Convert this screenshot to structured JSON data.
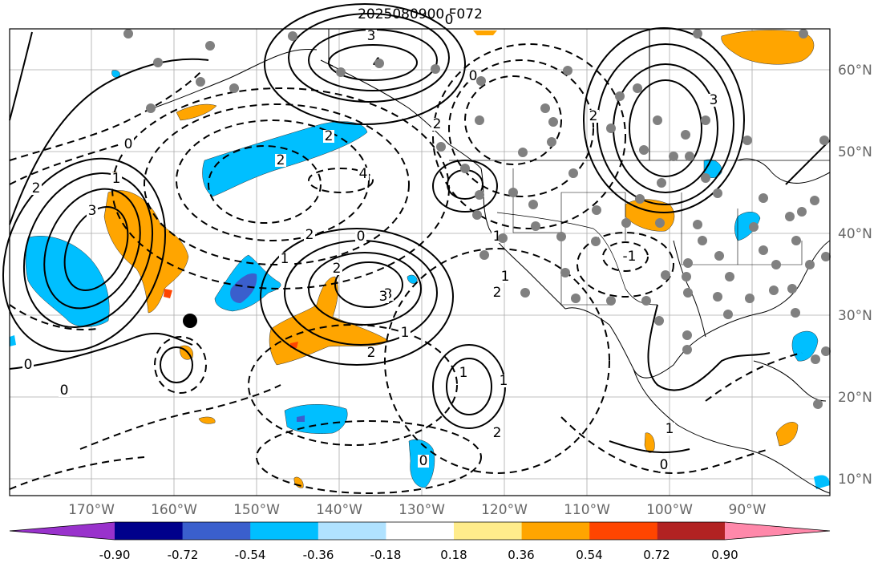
{
  "title": "2025080900 F072",
  "map": {
    "lon_ticks": [
      "170°W",
      "160°W",
      "150°W",
      "140°W",
      "130°W",
      "120°W",
      "110°W",
      "100°W",
      "90°W"
    ],
    "lat_ticks": [
      "60°N",
      "50°N",
      "40°N",
      "30°N",
      "20°N",
      "10°N"
    ],
    "contour_labels": [
      "3",
      "4",
      "3",
      "3",
      "2",
      "2",
      "3",
      "4",
      "2",
      "2",
      "1",
      "0",
      "2",
      "3",
      "0",
      "1",
      "2",
      "2",
      "1",
      "0",
      "1",
      "-1",
      "0",
      "0",
      "1",
      "1",
      "1",
      "0",
      "1",
      "2",
      "2",
      "0",
      "0",
      "2"
    ]
  },
  "colorbar": {
    "labels": [
      "-0.90",
      "-0.72",
      "-0.54",
      "-0.36",
      "-0.18",
      "0.18",
      "0.36",
      "0.54",
      "0.72",
      "0.90"
    ],
    "colors": [
      "#9932cc",
      "#00008b",
      "#3a5fcd",
      "#00bfff",
      "#b0e2ff",
      "#ffffff",
      "#ffec8b",
      "#ffa500",
      "#ff4500",
      "#b22222",
      "#ff88aa"
    ]
  }
}
